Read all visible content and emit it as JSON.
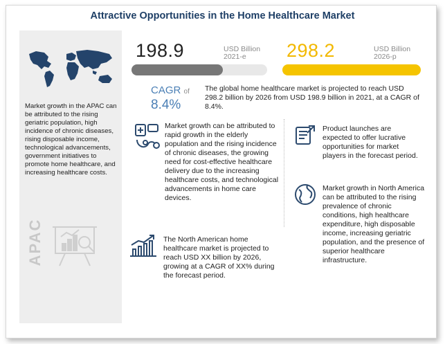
{
  "title": "Attractive Opportunities in the Home Healthcare Market",
  "sidebar": {
    "text": "Market growth in the APAC can be attributed to the rising geriatric population, high incidence of chronic diseases, rising disposable income, technological advancements, government initiatives to promote home healthcare, and increasing healthcare costs.",
    "region_label": "APAC"
  },
  "stats": {
    "value_2021": "198.9",
    "unit_2021": "USD Billion",
    "year_2021": "2021-e",
    "value_2026": "298.2",
    "unit_2026": "USD Billion",
    "year_2026": "2026-p",
    "bar_2021_color": "#777777",
    "bar_2026_color": "#f5c400",
    "value_2026_color": "#f2b800"
  },
  "cagr": {
    "label": "CAGR",
    "of": "of",
    "value": "8.4%",
    "summary": "The global home healthcare market is projected to reach USD 298.2 billion by 2026 from USD 198.9 billion in 2021, at a CAGR of 8.4%."
  },
  "insights": {
    "growth_drivers": "Market growth can be attributed to rapid growth in the elderly population and the rising incidence of chronic diseases, the growing need for cost-effective healthcare delivery due to the increasing healthcare costs, and technological advancements in home care devices.",
    "north_america_market": "The North American home healthcare market is projected to reach USD XX billion by 2026, growing at a CAGR of XX% during the forecast period.",
    "product_launches": "Product launches are expected to offer lucrative opportunities for market players in the forecast period.",
    "north_america_growth": "Market growth in North America can be attributed to the rising prevalence of chronic conditions, high healthcare expenditure, high disposable income, increasing geriatric population, and the presence of superior healthcare infrastructure."
  },
  "colors": {
    "title": "#1e3f66",
    "accent_blue": "#4a7fb5",
    "icon_navy": "#2c4a6e"
  }
}
